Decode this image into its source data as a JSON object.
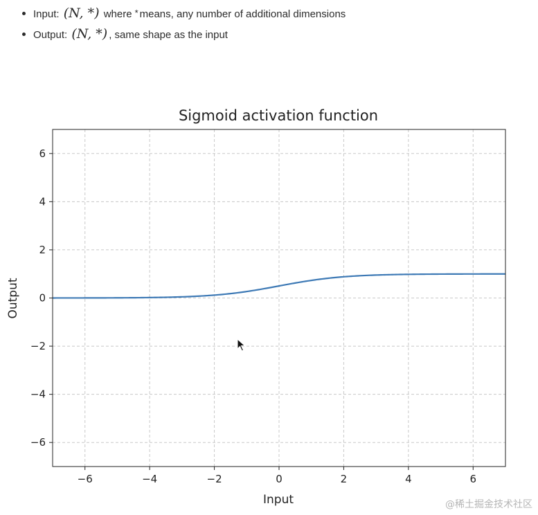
{
  "doc": {
    "input_label": "Input:",
    "input_math": "(N, *)",
    "input_where": "where",
    "star": "*",
    "input_desc": "means, any number of additional dimensions",
    "output_label": "Output:",
    "output_math": "(N, *)",
    "output_desc": ", same shape as the input"
  },
  "chart_data": {
    "type": "line",
    "title": "Sigmoid activation function",
    "xlabel": "Input",
    "ylabel": "Output",
    "xlim": [
      -7,
      7
    ],
    "ylim": [
      -7,
      7
    ],
    "xticks": [
      -6,
      -4,
      -2,
      0,
      2,
      4,
      6
    ],
    "yticks": [
      -6,
      -4,
      -2,
      0,
      2,
      4,
      6
    ],
    "grid": true,
    "grid_style": "dashed",
    "series": [
      {
        "function": "sigmoid",
        "color": "#3d79b5",
        "x": [
          -7,
          -6,
          -5,
          -4,
          -3,
          -2,
          -1,
          0,
          1,
          2,
          3,
          4,
          5,
          6,
          7
        ],
        "y": [
          0.001,
          0.002,
          0.007,
          0.018,
          0.047,
          0.119,
          0.269,
          0.5,
          0.731,
          0.881,
          0.953,
          0.982,
          0.993,
          0.998,
          0.999
        ]
      }
    ]
  },
  "watermark": "@稀土掘金技术社区"
}
